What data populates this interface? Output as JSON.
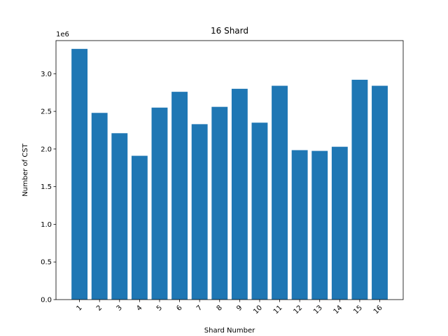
{
  "chart_data": {
    "type": "bar",
    "title": "16 Shard",
    "xlabel": "Shard Number",
    "ylabel": "Number of CST",
    "y_offset_label": "1e6",
    "categories": [
      "1",
      "2",
      "3",
      "4",
      "5",
      "6",
      "7",
      "8",
      "9",
      "10",
      "11",
      "12",
      "13",
      "14",
      "15",
      "16"
    ],
    "values": [
      3330000,
      2480000,
      2210000,
      1910000,
      2550000,
      2760000,
      2330000,
      2560000,
      2800000,
      2350000,
      2840000,
      1985000,
      1975000,
      2030000,
      2920000,
      2840000
    ],
    "ylim": [
      0,
      3440000
    ],
    "yticks": [
      0,
      500000,
      1000000,
      1500000,
      2000000,
      2500000,
      3000000
    ],
    "ytick_labels": [
      "0.0",
      "0.5",
      "1.0",
      "1.5",
      "2.0",
      "2.5",
      "3.0"
    ],
    "xtick_rotation": 45,
    "bar_color": "#1f77b4",
    "grid": false,
    "legend": "none"
  }
}
